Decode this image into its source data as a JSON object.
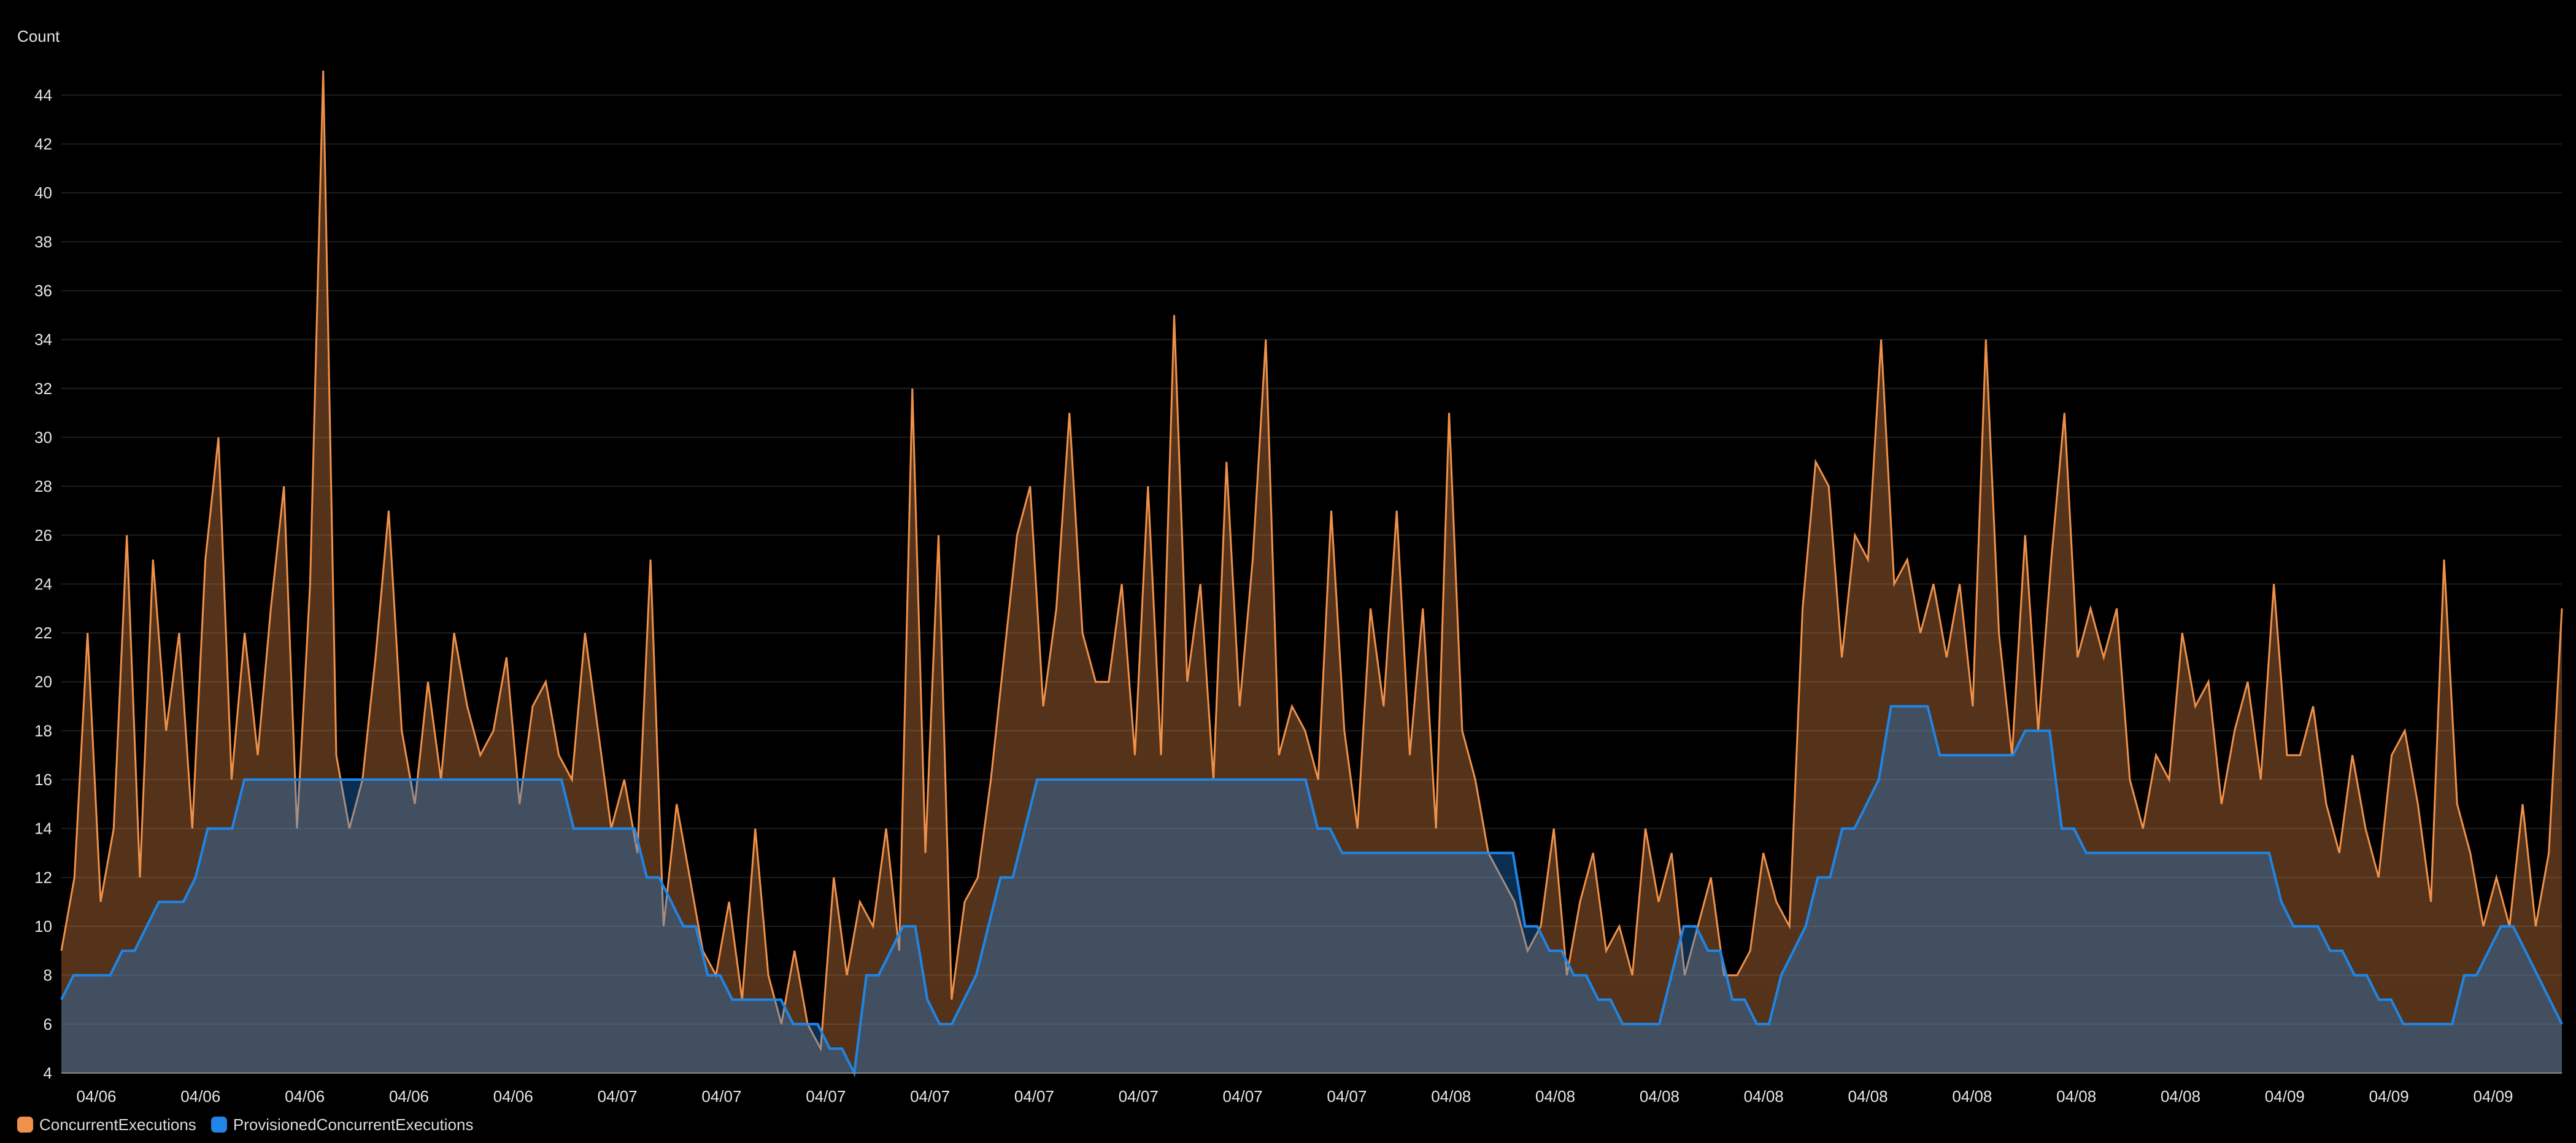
{
  "chart_data": {
    "type": "line",
    "ylabel": "Count",
    "ylim": [
      4,
      45
    ],
    "yticks": [
      4,
      6,
      8,
      10,
      12,
      14,
      16,
      18,
      20,
      22,
      24,
      26,
      28,
      30,
      32,
      34,
      36,
      38,
      40,
      42,
      44
    ],
    "xticks": [
      "04/06",
      "04/06",
      "04/06",
      "04/06",
      "04/06",
      "04/07",
      "04/07",
      "04/07",
      "04/07",
      "04/07",
      "04/07",
      "04/07",
      "04/07",
      "04/08",
      "04/08",
      "04/08",
      "04/08",
      "04/08",
      "04/08",
      "04/08",
      "04/08",
      "04/09",
      "04/09",
      "04/09"
    ],
    "grid": true,
    "legend_position": "bottom-left",
    "series": [
      {
        "name": "ConcurrentExecutions",
        "color": "#f0914a",
        "values": [
          9,
          12,
          22,
          11,
          14,
          26,
          12,
          25,
          18,
          22,
          14,
          25,
          30,
          16,
          22,
          17,
          23,
          28,
          14,
          24,
          45,
          17,
          14,
          16,
          21,
          27,
          18,
          15,
          20,
          16,
          22,
          19,
          17,
          18,
          21,
          15,
          19,
          20,
          17,
          16,
          22,
          18,
          14,
          16,
          13,
          25,
          10,
          15,
          12,
          9,
          8,
          11,
          7,
          14,
          8,
          6,
          9,
          6,
          5,
          12,
          8,
          11,
          10,
          14,
          9,
          32,
          13,
          26,
          7,
          11,
          12,
          16,
          21,
          26,
          28,
          19,
          23,
          31,
          22,
          20,
          20,
          24,
          17,
          28,
          17,
          35,
          20,
          24,
          16,
          29,
          19,
          25,
          34,
          17,
          19,
          18,
          16,
          27,
          18,
          14,
          23,
          19,
          27,
          17,
          23,
          14,
          31,
          18,
          16,
          13,
          12,
          11,
          9,
          10,
          14,
          8,
          11,
          13,
          9,
          10,
          8,
          14,
          11,
          13,
          8,
          10,
          12,
          8,
          8,
          9,
          13,
          11,
          10,
          23,
          29,
          28,
          21,
          26,
          25,
          34,
          24,
          25,
          22,
          24,
          21,
          24,
          19,
          34,
          22,
          17,
          26,
          18,
          25,
          31,
          21,
          23,
          21,
          23,
          16,
          14,
          17,
          16,
          22,
          19,
          20,
          15,
          18,
          20,
          16,
          24,
          17,
          17,
          19,
          15,
          13,
          17,
          14,
          12,
          17,
          18,
          15,
          11,
          25,
          15,
          13,
          10,
          12,
          10,
          15,
          10,
          13,
          23
        ]
      },
      {
        "name": "ProvisionedConcurrentExecutions",
        "color": "#1f85e6",
        "values": [
          7,
          8,
          8,
          8,
          8,
          9,
          9,
          10,
          11,
          11,
          11,
          12,
          14,
          14,
          14,
          16,
          16,
          16,
          16,
          16,
          16,
          16,
          16,
          16,
          16,
          16,
          16,
          16,
          16,
          16,
          16,
          16,
          16,
          16,
          16,
          16,
          16,
          16,
          16,
          16,
          16,
          16,
          14,
          14,
          14,
          14,
          14,
          14,
          12,
          12,
          11,
          10,
          10,
          8,
          8,
          7,
          7,
          7,
          7,
          7,
          6,
          6,
          6,
          5,
          5,
          4,
          8,
          8,
          9,
          10,
          10,
          7,
          6,
          6,
          7,
          8,
          10,
          12,
          12,
          14,
          16,
          16,
          16,
          16,
          16,
          16,
          16,
          16,
          16,
          16,
          16,
          16,
          16,
          16,
          16,
          16,
          16,
          16,
          16,
          16,
          16,
          16,
          16,
          14,
          14,
          13,
          13,
          13,
          13,
          13,
          13,
          13,
          13,
          13,
          13,
          13,
          13,
          13,
          13,
          13,
          10,
          10,
          9,
          9,
          8,
          8,
          7,
          7,
          6,
          6,
          6,
          6,
          8,
          10,
          10,
          9,
          9,
          7,
          7,
          6,
          6,
          8,
          9,
          10,
          12,
          12,
          14,
          14,
          15,
          16,
          19,
          19,
          19,
          19,
          17,
          17,
          17,
          17,
          17,
          17,
          17,
          18,
          18,
          18,
          14,
          14,
          13,
          13,
          13,
          13,
          13,
          13,
          13,
          13,
          13,
          13,
          13,
          13,
          13,
          13,
          13,
          13,
          11,
          10,
          10,
          10,
          9,
          9,
          8,
          8,
          7,
          7,
          6,
          6,
          6,
          6,
          6,
          8,
          8,
          9,
          10,
          10,
          9,
          8,
          7,
          6
        ]
      }
    ]
  }
}
